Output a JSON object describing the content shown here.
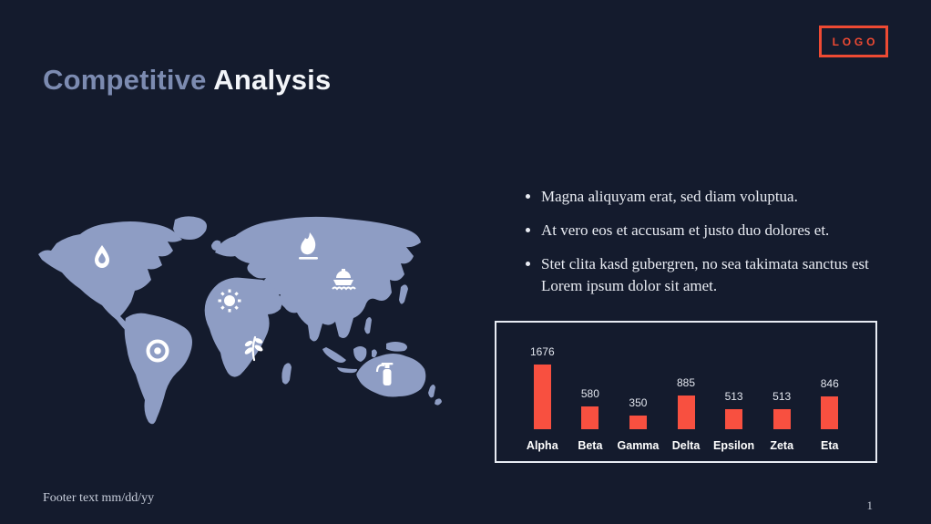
{
  "slide": {
    "title": {
      "part1": "Competitive ",
      "part2": "Analysis"
    },
    "logo": {
      "label": "LOGO"
    },
    "bullets": [
      "Magna aliquyam erat, sed diam voluptua.",
      "At vero eos et accusam et justo duo dolores et.",
      "Stet clita kasd gubergren, no sea takimata sanctus est Lorem ipsum dolor sit amet."
    ],
    "footer": "Footer text mm/dd/yy",
    "page_number": "1"
  },
  "map": {
    "description": "world-map-silhouette",
    "icons": [
      {
        "name": "water-drop-icon",
        "region": "north-america"
      },
      {
        "name": "target-icon",
        "region": "south-america"
      },
      {
        "name": "sun-icon",
        "region": "north-africa"
      },
      {
        "name": "leaf-icon",
        "region": "central-africa"
      },
      {
        "name": "flame-icon",
        "region": "siberia"
      },
      {
        "name": "ship-icon",
        "region": "east-asia"
      },
      {
        "name": "fire-extinguisher-icon",
        "region": "australia"
      }
    ]
  },
  "chart_data": {
    "type": "bar",
    "categories": [
      "Alpha",
      "Beta",
      "Gamma",
      "Delta",
      "Epsilon",
      "Zeta",
      "Eta"
    ],
    "values": [
      1676,
      580,
      350,
      885,
      513,
      513,
      846
    ],
    "title": "",
    "xlabel": "",
    "ylabel": "",
    "ylim": [
      0,
      1800
    ],
    "grid": false,
    "legend": false,
    "bar_color": "#f85040",
    "value_labels_shown": true
  },
  "colors": {
    "background": "#141b2d",
    "accent_red": "#ee4a33",
    "bar_red": "#f85040",
    "map_fill": "#8e9dc4",
    "title_muted": "#7c8bb1",
    "title_bright": "#f3f5f9",
    "body_text": "#e9ecf3",
    "footer_text": "#c6ccd9",
    "chart_border": "#e8ecf3"
  }
}
